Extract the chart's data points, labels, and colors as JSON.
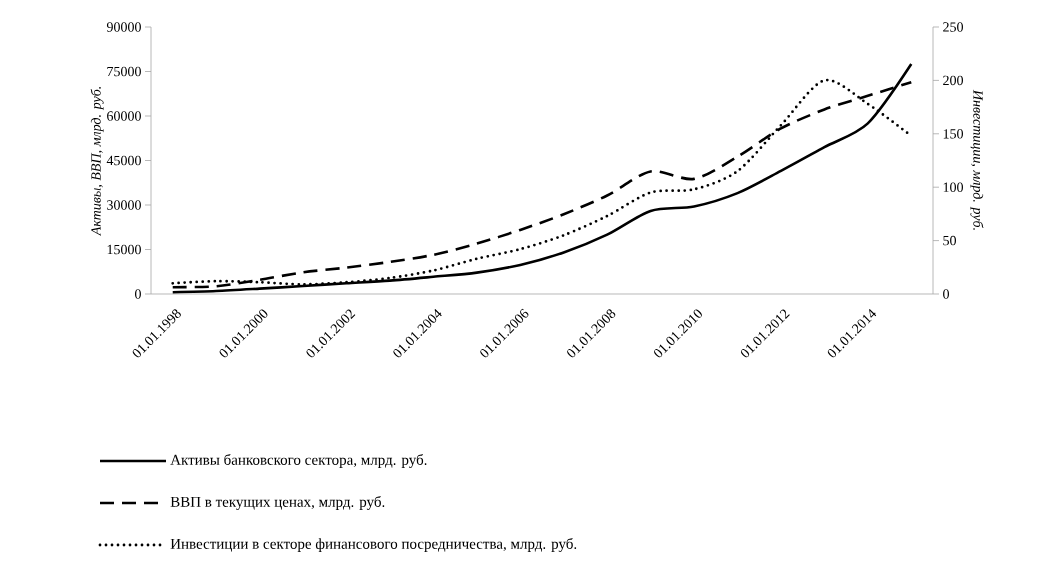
{
  "chart_data": {
    "type": "line",
    "categories": [
      "01.01.1998",
      null,
      "01.01.2000",
      null,
      "01.01.2002",
      null,
      "01.01.2004",
      null,
      "01.01.2006",
      null,
      "01.01.2008",
      null,
      "01.01.2010",
      null,
      "01.01.2012",
      null,
      "01.01.2014",
      null
    ],
    "ylabel": "Активы, ВВП, млрд. руб.",
    "y2label": "Инвестиции, млрд. руб.",
    "ylim": [
      0,
      90000
    ],
    "yticks": [
      0,
      15000,
      30000,
      45000,
      60000,
      75000,
      90000
    ],
    "y2lim": [
      0,
      250
    ],
    "y2ticks": [
      0,
      50,
      100,
      150,
      200,
      250
    ],
    "legend": "bottom",
    "series": [
      {
        "name": "Активы банковского сектора, млрд. руб.",
        "color": "#000000",
        "line_style": "solid",
        "values": [
          600,
          1000,
          1800,
          2700,
          3600,
          4500,
          5800,
          7200,
          9800,
          14000,
          20000,
          28000,
          29500,
          34000,
          41500,
          49500,
          57500,
          77500
        ]
      },
      {
        "name": "ВВП  в текущих ценах, млрд. руб.",
        "color": "#000000",
        "line_style": "dashed",
        "values": [
          2300,
          2600,
          4800,
          7300,
          8900,
          10800,
          13200,
          17000,
          21600,
          26900,
          33200,
          41300,
          38800,
          46300,
          55800,
          62200,
          66800,
          71400
        ]
      },
      {
        "name": "Инвестиции  в секторе финансового посредничества, млрд. руб.",
        "color": "#000000",
        "line_style": "dotted",
        "axis": "y2",
        "values": [
          10,
          12,
          11,
          9,
          11,
          15,
          22,
          33,
          42,
          55,
          73,
          95,
          98,
          115,
          158,
          200,
          178,
          148
        ]
      }
    ]
  }
}
